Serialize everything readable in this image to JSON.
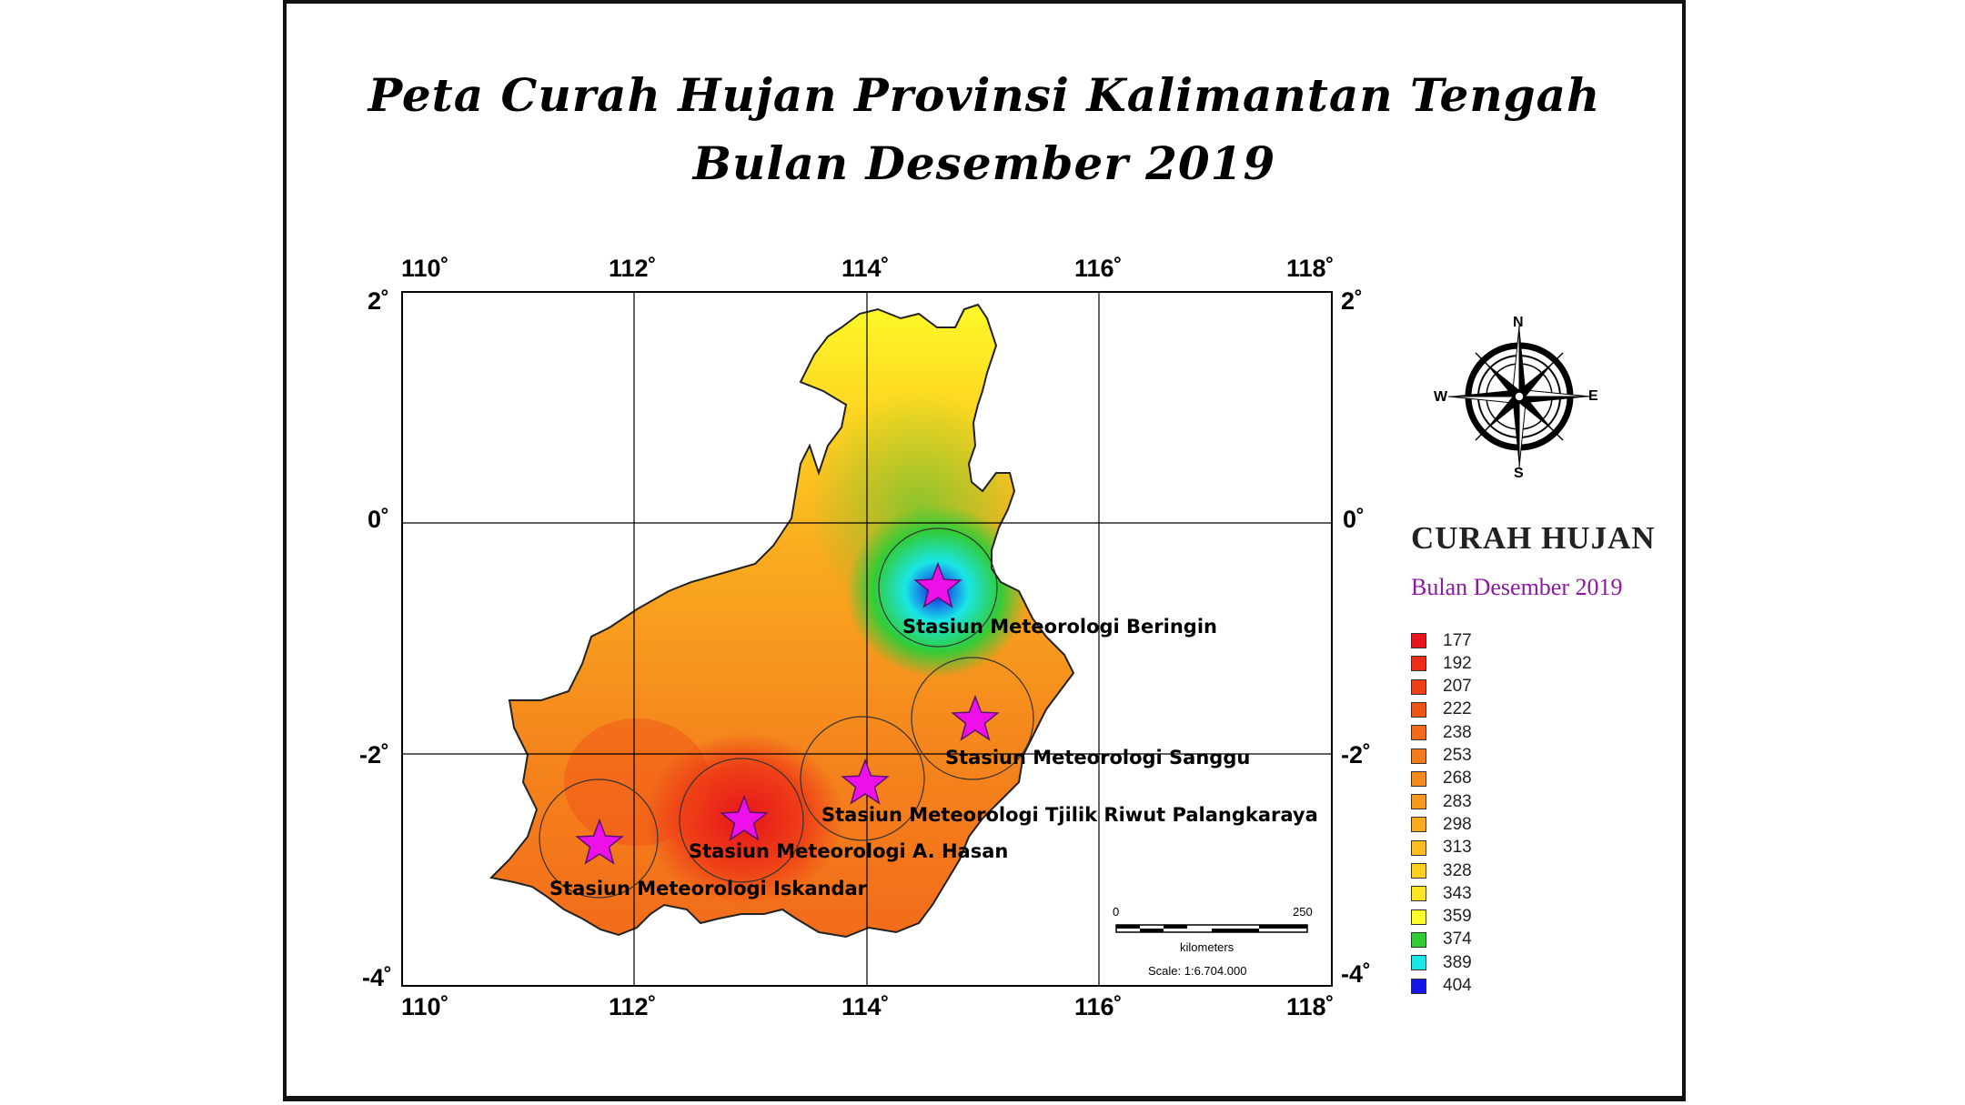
{
  "title": {
    "line1": "Peta Curah Hujan Provinsi Kalimantan Tengah",
    "line2": "Bulan Desember 2019"
  },
  "axes": {
    "longitude_labels": [
      "110˚",
      "112˚",
      "114˚",
      "116˚",
      "118˚"
    ],
    "latitude_labels": [
      "2˚",
      "0˚",
      "-2˚",
      "-4˚"
    ]
  },
  "stations": [
    {
      "name": "Stasiun Meteorologi Beringin"
    },
    {
      "name": "Stasiun Meteorologi Sanggu"
    },
    {
      "name": "Stasiun Meteorologi  Tjilik Riwut Palangkaraya"
    },
    {
      "name": "Stasiun Meteorologi A. Hasan"
    },
    {
      "name": "Stasiun Meteorologi Iskandar"
    }
  ],
  "compass": {
    "n": "N",
    "s": "S",
    "e": "E",
    "w": "W"
  },
  "scale": {
    "start": "0",
    "end": "250",
    "unit": "kilometers",
    "ratio": "Scale: 1:6.704.000"
  },
  "legend": {
    "title": "CURAH HUJAN",
    "subtitle": "Bulan Desember 2019",
    "items": [
      {
        "value": "177",
        "color": "#e8141b"
      },
      {
        "value": "192",
        "color": "#ec2d18"
      },
      {
        "value": "207",
        "color": "#ee3f17"
      },
      {
        "value": "222",
        "color": "#f05518"
      },
      {
        "value": "238",
        "color": "#f26a1a"
      },
      {
        "value": "253",
        "color": "#f47c1c"
      },
      {
        "value": "268",
        "color": "#f58a1d"
      },
      {
        "value": "283",
        "color": "#f7991e"
      },
      {
        "value": "298",
        "color": "#f9aa1f"
      },
      {
        "value": "313",
        "color": "#fbbd1f"
      },
      {
        "value": "328",
        "color": "#fdd020"
      },
      {
        "value": "343",
        "color": "#fde524"
      },
      {
        "value": "359",
        "color": "#fdfb28"
      },
      {
        "value": "374",
        "color": "#32cc37"
      },
      {
        "value": "389",
        "color": "#1ae6e6"
      },
      {
        "value": "404",
        "color": "#1515e6"
      }
    ]
  }
}
